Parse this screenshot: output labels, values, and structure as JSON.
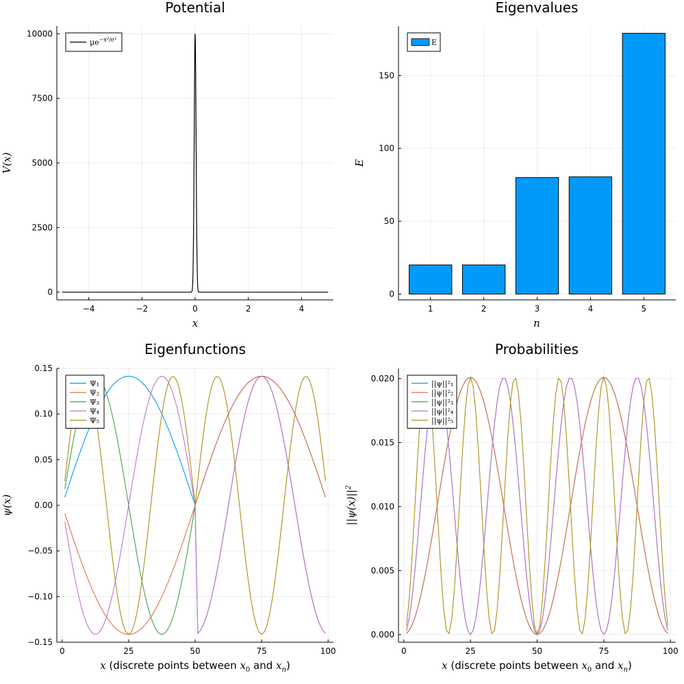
{
  "colors": {
    "c1": "#009AFA",
    "c2": "#E36F47",
    "c3": "#3EA44E",
    "c4": "#C371D2",
    "c5": "#AC8E18",
    "potential": "#000000",
    "bar": "#009AFA",
    "grid": "#ebebeb"
  },
  "chart_data": [
    {
      "id": "potential",
      "type": "line",
      "title": "Potential",
      "xlabel": "x",
      "ylabel": "V(x)",
      "xlim": [
        -5.2,
        5.2
      ],
      "ylim": [
        -300,
        10300
      ],
      "xticks": [
        -4,
        -2,
        0,
        2,
        4
      ],
      "xtick_labels": [
        "−4",
        "−2",
        "0",
        "2",
        "4"
      ],
      "yticks": [
        0,
        2500,
        5000,
        7500,
        10000
      ],
      "ytick_labels": [
        "0",
        "2500",
        "5000",
        "7500",
        "10000"
      ],
      "series": [
        {
          "name": "μe^{−x²/σ²}",
          "function": "gaussian",
          "mu": 10000,
          "sigma": 0.05,
          "x_range": [
            -5,
            5
          ]
        }
      ],
      "grid": true,
      "legend": "top-left"
    },
    {
      "id": "eigenvalues",
      "type": "bar",
      "title": "Eigenvalues",
      "xlabel": "n",
      "ylabel": "E",
      "categories": [
        "1",
        "2",
        "3",
        "4",
        "5"
      ],
      "values": [
        20,
        20,
        80,
        80.5,
        179
      ],
      "ylim": [
        -4,
        184
      ],
      "yticks": [
        0,
        50,
        100,
        150
      ],
      "ytick_labels": [
        "0",
        "50",
        "100",
        "150"
      ],
      "series": [
        {
          "name": "E"
        }
      ],
      "grid": true,
      "legend": "top-left"
    },
    {
      "id": "eigenfunctions",
      "type": "line",
      "title": "Eigenfunctions",
      "xlabel": "x (discrete points between x0 and xn)",
      "ylabel": "ψ(x)",
      "xlim": [
        -2,
        102
      ],
      "ylim": [
        -0.15,
        0.15
      ],
      "xticks": [
        0,
        25,
        50,
        75,
        100
      ],
      "xtick_labels": [
        "0",
        "25",
        "50",
        "75",
        "100"
      ],
      "yticks": [
        -0.15,
        -0.1,
        -0.05,
        0.0,
        0.05,
        0.1,
        0.15
      ],
      "ytick_labels": [
        "−0.15",
        "−0.10",
        "−0.05",
        "0.00",
        "0.05",
        "0.10",
        "0.15"
      ],
      "x_range": [
        1,
        99
      ],
      "amplitude": 0.1414,
      "series": [
        {
          "name": "Ψ₁",
          "mode": 1,
          "sign_left": 1,
          "sign_right": 1
        },
        {
          "name": "Ψ₂",
          "mode": 1,
          "sign_left": -1,
          "sign_right": 1
        },
        {
          "name": "Ψ₃",
          "mode": 2,
          "sign_left": 1,
          "sign_right": -1
        },
        {
          "name": "Ψ₄",
          "mode": 2,
          "sign_left": -1,
          "sign_right": -1
        },
        {
          "name": "Ψ₅",
          "mode": 3,
          "sign_left": 1,
          "sign_right": 1
        }
      ],
      "grid": true,
      "legend": "top-left"
    },
    {
      "id": "probabilities",
      "type": "line",
      "title": "Probabilities",
      "xlabel": "x (discrete points between x0 and xn)",
      "ylabel": "||ψ(x)||²",
      "xlim": [
        -2,
        102
      ],
      "ylim": [
        -0.0006,
        0.0208
      ],
      "xticks": [
        0,
        25,
        50,
        75,
        100
      ],
      "xtick_labels": [
        "0",
        "25",
        "50",
        "75",
        "100"
      ],
      "yticks": [
        0.0,
        0.005,
        0.01,
        0.015,
        0.02
      ],
      "ytick_labels": [
        "0.000",
        "0.005",
        "0.010",
        "0.015",
        "0.020"
      ],
      "x_range": [
        1,
        99
      ],
      "amplitude": 0.0201,
      "series": [
        {
          "name": "||ψ||²₁",
          "mode": 1
        },
        {
          "name": "||ψ||²₂",
          "mode": 1
        },
        {
          "name": "||ψ||²₃",
          "mode": 2
        },
        {
          "name": "||ψ||²₄",
          "mode": 2
        },
        {
          "name": "||ψ||²₅",
          "mode": 3
        }
      ],
      "grid": true,
      "legend": "top-left"
    }
  ],
  "labels": {
    "p1_title": "Potential",
    "p1_xlabel": "x",
    "p1_ylabel": "V(x)",
    "p1_legend": "μe",
    "p1_legend_sup": "−x²/σ²",
    "p2_title": "Eigenvalues",
    "p2_xlabel": "n",
    "p2_ylabel": "E",
    "p2_legend": "E",
    "p3_title": "Eigenfunctions",
    "p3_ylabel": "ψ(x)",
    "p4_title": "Probabilities",
    "p4_ylabel": "||ψ(x)||",
    "p4_ylabel_sup": "2",
    "xlabel_prefix": "x",
    "xlabel_mid": " (discrete points between ",
    "xlabel_x": "x",
    "xlabel_sub0": "0",
    "xlabel_and": " and ",
    "xlabel_subn": "n",
    "xlabel_close": ")"
  }
}
